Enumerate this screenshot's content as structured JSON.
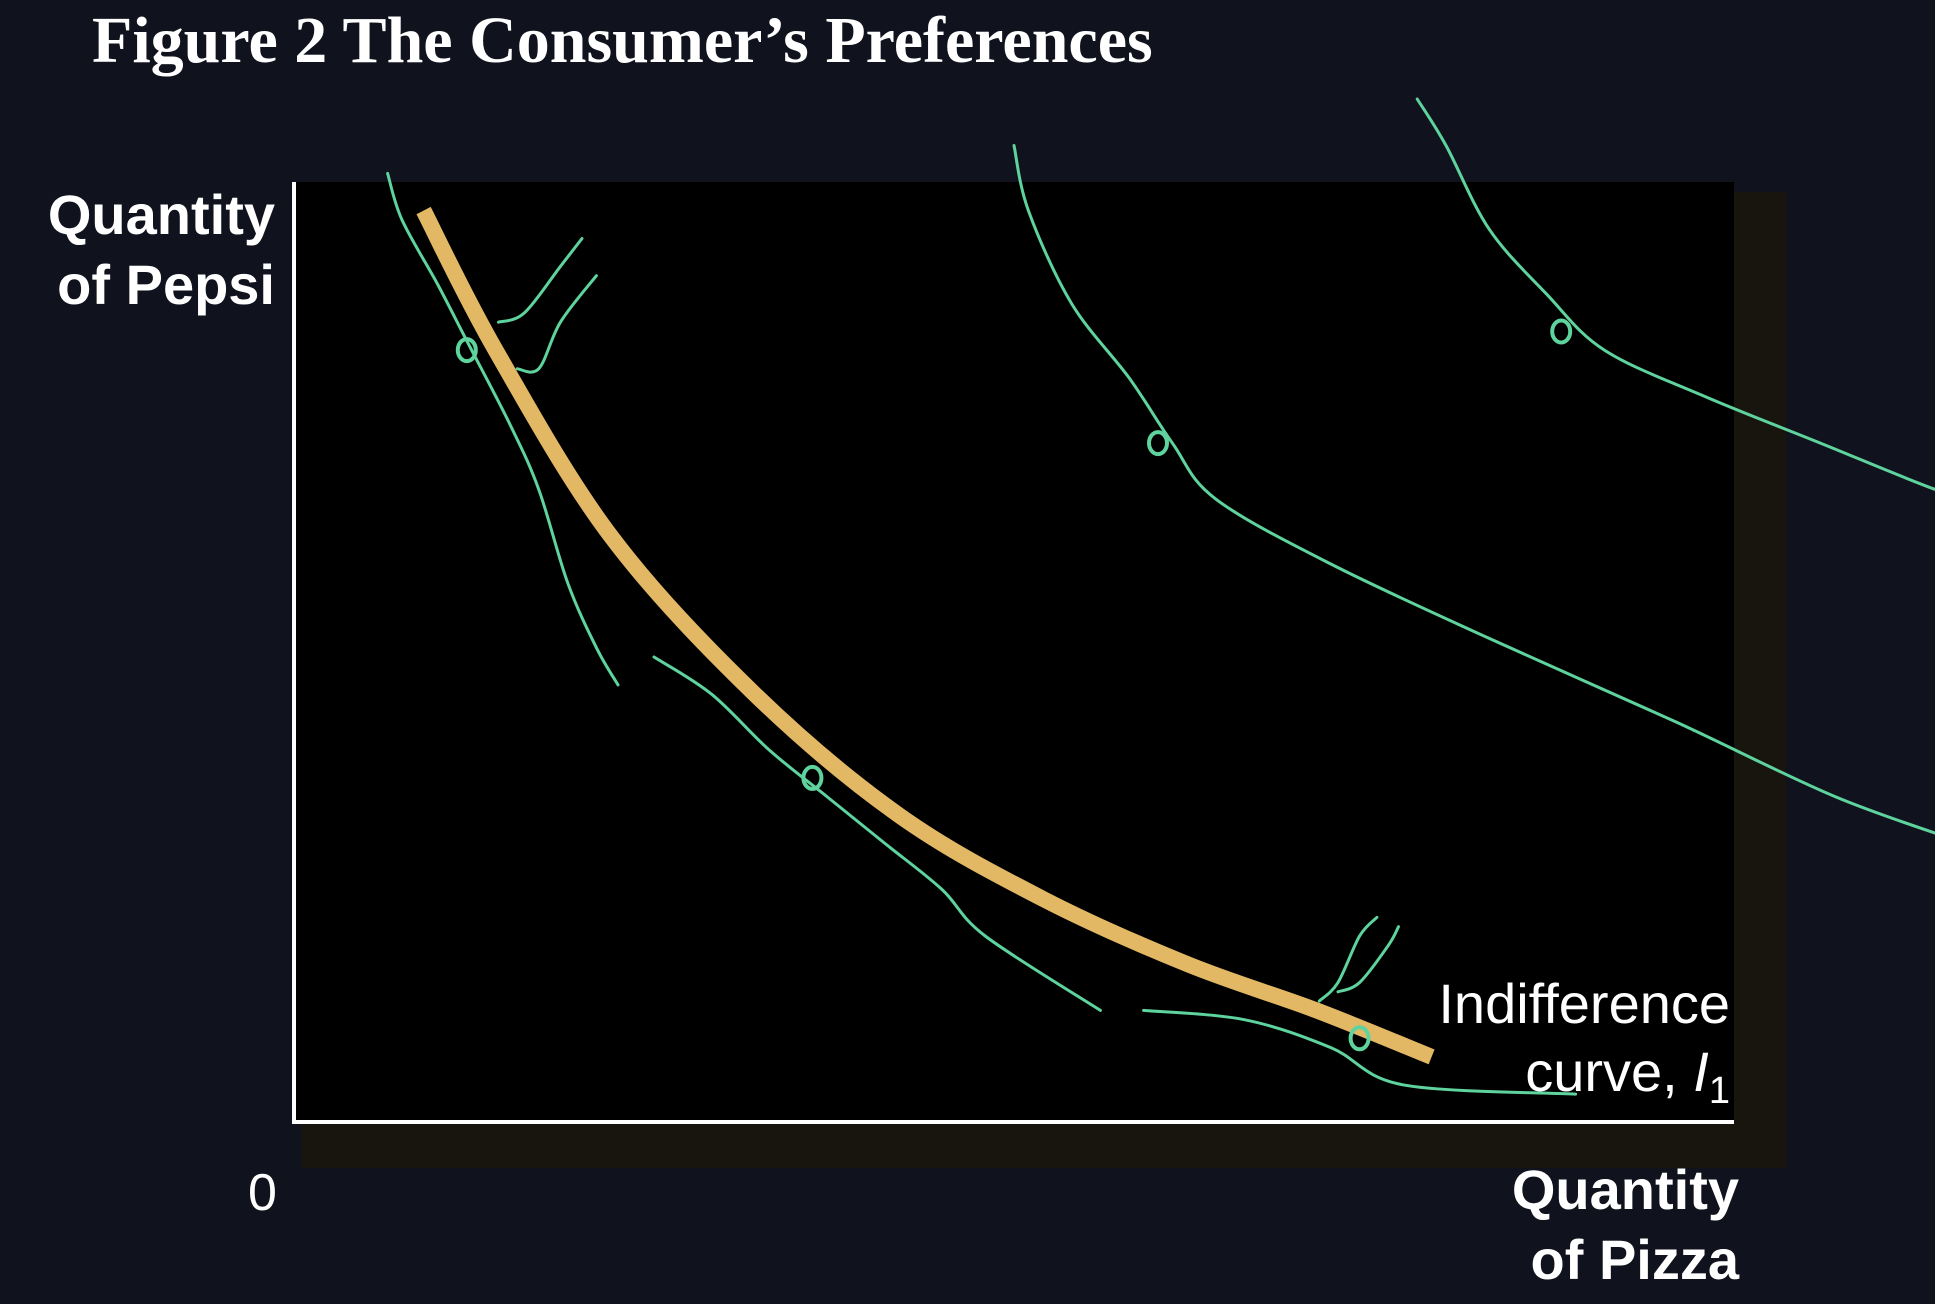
{
  "chart_data": {
    "type": "line",
    "title": "Figure 2 The Consumer’s Preferences",
    "ylabel_lines": [
      "Quantity",
      "of Pepsi"
    ],
    "xlabel_lines": [
      "Quantity",
      "of Pizza"
    ],
    "origin_label": "0",
    "series": [
      {
        "name_parts": [
          "Indifference",
          "curve, ",
          "I",
          "1"
        ],
        "points": [
          [
            0.09,
            0.98
          ],
          [
            0.14,
            0.83
          ],
          [
            0.22,
            0.63
          ],
          [
            0.32,
            0.46
          ],
          [
            0.42,
            0.33
          ],
          [
            0.52,
            0.24
          ],
          [
            0.62,
            0.17
          ],
          [
            0.71,
            0.12
          ],
          [
            0.79,
            0.07
          ]
        ]
      }
    ],
    "annotation_strokes": [
      [
        [
          0.065,
          1.02
        ],
        [
          0.075,
          0.97
        ],
        [
          0.1,
          0.9
        ],
        [
          0.12,
          0.84
        ],
        [
          0.15,
          0.75
        ],
        [
          0.17,
          0.68
        ],
        [
          0.19,
          0.58
        ],
        [
          0.21,
          0.51
        ],
        [
          0.225,
          0.47
        ]
      ],
      [
        [
          0.25,
          0.5
        ],
        [
          0.29,
          0.46
        ],
        [
          0.33,
          0.4
        ],
        [
          0.37,
          0.35
        ],
        [
          0.41,
          0.3
        ],
        [
          0.45,
          0.25
        ],
        [
          0.48,
          0.2
        ],
        [
          0.56,
          0.12
        ]
      ],
      [
        [
          0.59,
          0.12
        ],
        [
          0.66,
          0.11
        ],
        [
          0.72,
          0.08
        ],
        [
          0.77,
          0.04
        ],
        [
          0.89,
          0.03
        ]
      ],
      [
        [
          0.5,
          1.05
        ],
        [
          0.51,
          0.98
        ],
        [
          0.54,
          0.88
        ],
        [
          0.58,
          0.8
        ],
        [
          0.61,
          0.73
        ],
        [
          0.64,
          0.67
        ],
        [
          0.72,
          0.6
        ],
        [
          0.83,
          0.52
        ],
        [
          0.96,
          0.43
        ],
        [
          1.07,
          0.35
        ],
        [
          1.16,
          0.3
        ]
      ],
      [
        [
          0.78,
          1.1
        ],
        [
          0.8,
          1.05
        ],
        [
          0.83,
          0.96
        ],
        [
          0.87,
          0.89
        ],
        [
          0.91,
          0.83
        ],
        [
          0.98,
          0.78
        ],
        [
          1.06,
          0.73
        ],
        [
          1.14,
          0.68
        ],
        [
          1.2,
          0.65
        ]
      ]
    ],
    "annotation_marks": [
      [
        0.12,
        0.83
      ],
      [
        0.36,
        0.37
      ],
      [
        0.6,
        0.73
      ],
      [
        0.88,
        0.85
      ],
      [
        0.74,
        0.09
      ]
    ],
    "check_marks": [
      [
        [
          0.142,
          0.86
        ],
        [
          0.16,
          0.87
        ],
        [
          0.185,
          0.92
        ],
        [
          0.2,
          0.95
        ]
      ],
      [
        [
          0.155,
          0.81
        ],
        [
          0.17,
          0.81
        ],
        [
          0.185,
          0.86
        ],
        [
          0.21,
          0.91
        ]
      ],
      [
        [
          0.712,
          0.13
        ],
        [
          0.725,
          0.15
        ],
        [
          0.74,
          0.2
        ],
        [
          0.752,
          0.22
        ]
      ],
      [
        [
          0.725,
          0.14
        ],
        [
          0.74,
          0.15
        ],
        [
          0.76,
          0.19
        ],
        [
          0.767,
          0.21
        ]
      ]
    ],
    "xlim": [
      0,
      1
    ],
    "ylim": [
      0,
      1
    ],
    "grid": false,
    "colors": {
      "curve": "#e2b865",
      "annotation": "#5ed39d",
      "axes": "#ffffff",
      "plot_background": "#000000",
      "page_background": "#10131d",
      "shadow": "#18150e"
    }
  }
}
